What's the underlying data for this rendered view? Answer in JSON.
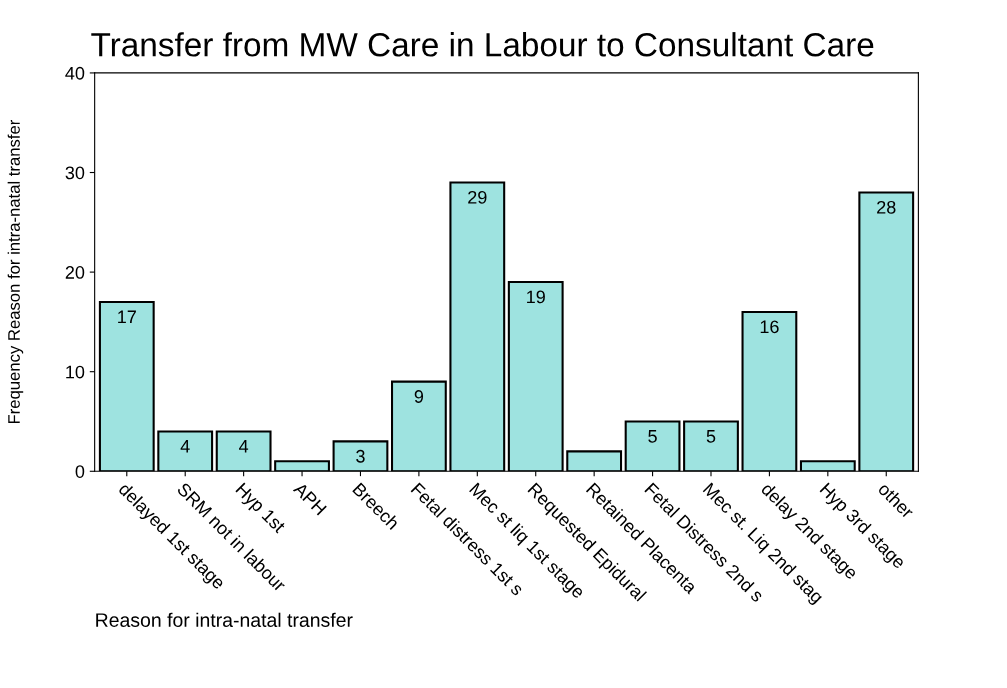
{
  "chart_data": {
    "type": "bar",
    "title": "Transfer from MW Care in Labour to Consultant Care",
    "xlabel": "Reason for intra-natal transfer",
    "ylabel": "Frequency Reason for intra-natal transfer",
    "categories": [
      "delayed 1st stage",
      "SRM not in labour",
      "Hyp 1st",
      "APH",
      "Breech",
      "Fetal distress 1st s",
      "Mec st liq 1st stage",
      "Requested Epidural",
      "Retained Placenta",
      "Fetal Distress 2nd s",
      "Mec st. Liq 2nd stag",
      "delay 2nd stage",
      "Hyp 3rd stage",
      "other"
    ],
    "values": [
      17,
      4,
      4,
      1,
      3,
      9,
      29,
      19,
      2,
      5,
      5,
      16,
      1,
      28
    ],
    "value_labels": [
      "17",
      "4",
      "4",
      null,
      "3",
      "9",
      "29",
      "19",
      null,
      "5",
      "5",
      "16",
      null,
      "28"
    ],
    "color": "#9ee3e0",
    "ylim": [
      0,
      40
    ],
    "yticks": [
      0,
      10,
      20,
      30,
      40
    ],
    "grid": false,
    "legend": false
  }
}
